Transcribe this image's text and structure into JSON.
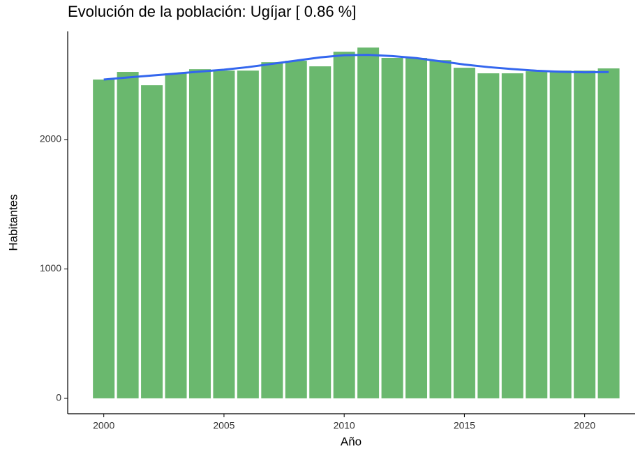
{
  "chart_data": {
    "type": "bar",
    "title": "Evolución de la población: Ugíjar [ 0.86 %]",
    "x_label": "Año",
    "y_label": "Habitantes",
    "x": [
      2000,
      2001,
      2002,
      2003,
      2004,
      2005,
      2006,
      2007,
      2008,
      2009,
      2010,
      2011,
      2012,
      2013,
      2014,
      2015,
      2016,
      2017,
      2018,
      2019,
      2020,
      2021
    ],
    "values": [
      2464,
      2523,
      2420,
      2512,
      2544,
      2533,
      2533,
      2598,
      2609,
      2566,
      2679,
      2711,
      2631,
      2631,
      2614,
      2555,
      2512,
      2512,
      2528,
      2533,
      2533,
      2550
    ],
    "color": "#6ab86e",
    "line": {
      "color": "#3366ee",
      "values": [
        2464,
        2480,
        2495,
        2510,
        2525,
        2540,
        2560,
        2585,
        2610,
        2635,
        2652,
        2655,
        2645,
        2630,
        2605,
        2580,
        2560,
        2545,
        2532,
        2524,
        2520,
        2522
      ]
    },
    "xlim": [
      1998.5,
      2022.1
    ],
    "xticks": [
      2000,
      2005,
      2010,
      2015,
      2020
    ],
    "ylim": [
      -119,
      2836
    ],
    "yticks": [
      0,
      1000,
      2000
    ]
  }
}
